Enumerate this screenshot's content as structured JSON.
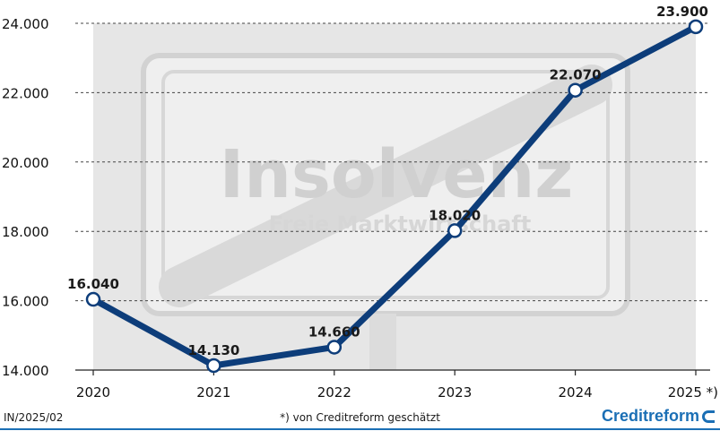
{
  "chart_data": {
    "type": "line",
    "categories": [
      "2020",
      "2021",
      "2022",
      "2023",
      "2024",
      "2025 *)"
    ],
    "values": [
      16040,
      14130,
      14660,
      18020,
      22070,
      23900
    ],
    "data_labels": [
      "16.040",
      "14.130",
      "14.660",
      "18.020",
      "22.070",
      "23.900"
    ],
    "y_ticks": [
      14000,
      16000,
      18000,
      20000,
      22000,
      24000
    ],
    "y_tick_labels": [
      "14.000",
      "16.000",
      "18.000",
      "20.000",
      "22.000",
      "24.000"
    ],
    "ylim": [
      14000,
      24000
    ],
    "grid": true,
    "line_color": "#0d3d7a",
    "background_sign_text": "Insolvenz",
    "background_sign_subtext": "Freie Marktwirtschaft"
  },
  "footer": {
    "reference": "IN/2025/02",
    "note": "*) von Creditreform geschätzt",
    "brand": "Creditreform"
  },
  "colors": {
    "brand": "#1b6fb5",
    "grid": "#444444"
  }
}
